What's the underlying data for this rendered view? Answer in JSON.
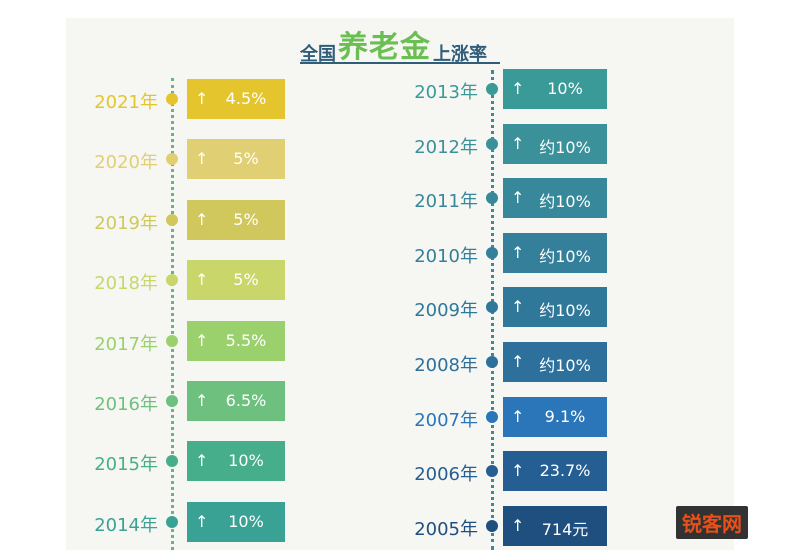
{
  "header": {
    "title_prefix": "全国",
    "title_main": "养老金",
    "title_suffix": "上涨率"
  },
  "chart_data": {
    "type": "bar",
    "title": "全国养老金上涨率",
    "left_column": [
      {
        "year": "2021年",
        "label": "4.5%",
        "color": "#e4c52e"
      },
      {
        "year": "2020年",
        "label": "5%",
        "color": "#e0cf73"
      },
      {
        "year": "2019年",
        "label": "5%",
        "color": "#d0c85c"
      },
      {
        "year": "2018年",
        "label": "5%",
        "color": "#c8d66a"
      },
      {
        "year": "2017年",
        "label": "5.5%",
        "color": "#9ad16c"
      },
      {
        "year": "2016年",
        "label": "6.5%",
        "color": "#6ec07e"
      },
      {
        "year": "2015年",
        "label": "10%",
        "color": "#47ae8c"
      },
      {
        "year": "2014年",
        "label": "10%",
        "color": "#3aa294"
      }
    ],
    "right_column": [
      {
        "year": "2013年",
        "label": "10%",
        "color": "#3a9a98"
      },
      {
        "year": "2012年",
        "label": "约10%",
        "color": "#3a9199"
      },
      {
        "year": "2011年",
        "label": "约10%",
        "color": "#37889a"
      },
      {
        "year": "2010年",
        "label": "约10%",
        "color": "#347f9a"
      },
      {
        "year": "2009年",
        "label": "约10%",
        "color": "#30789a"
      },
      {
        "year": "2008年",
        "label": "约10%",
        "color": "#2d709c"
      },
      {
        "year": "2007年",
        "label": "9.1%",
        "color": "#2a76b8"
      },
      {
        "year": "2006年",
        "label": "23.7%",
        "color": "#255e93"
      },
      {
        "year": "2005年",
        "label": "714元",
        "color": "#1f4f7e"
      }
    ]
  },
  "watermark": {
    "text": "锐客网"
  }
}
